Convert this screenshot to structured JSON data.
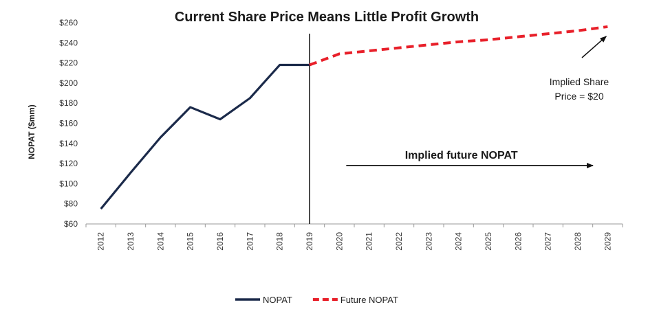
{
  "chart_data": {
    "type": "line",
    "title": "Current Share Price Means Little Profit Growth",
    "ylabel": "NOPAT ($mm)",
    "xlabel": "",
    "ylim": [
      60,
      260
    ],
    "yticks": [
      "$60",
      "$80",
      "$100",
      "$120",
      "$140",
      "$160",
      "$180",
      "$200",
      "$220",
      "$240",
      "$260"
    ],
    "x": [
      "2012",
      "2013",
      "2014",
      "2015",
      "2016",
      "2017",
      "2018",
      "2019",
      "2020",
      "2021",
      "2022",
      "2023",
      "2024",
      "2025",
      "2026",
      "2027",
      "2028",
      "2029"
    ],
    "series": [
      {
        "name": "NOPAT",
        "color": "#1b2a4a",
        "style": "solid",
        "points": [
          {
            "x": "2012",
            "y": 75
          },
          {
            "x": "2013",
            "y": 111
          },
          {
            "x": "2014",
            "y": 146
          },
          {
            "x": "2015",
            "y": 176
          },
          {
            "x": "2016",
            "y": 164
          },
          {
            "x": "2017",
            "y": 185
          },
          {
            "x": "2018",
            "y": 218
          },
          {
            "x": "2019",
            "y": 218
          }
        ]
      },
      {
        "name": "Future NOPAT",
        "color": "#e8202a",
        "style": "dashed",
        "points": [
          {
            "x": "2019",
            "y": 218
          },
          {
            "x": "2020",
            "y": 229
          },
          {
            "x": "2021",
            "y": 232
          },
          {
            "x": "2022",
            "y": 235
          },
          {
            "x": "2023",
            "y": 238
          },
          {
            "x": "2024",
            "y": 241
          },
          {
            "x": "2025",
            "y": 243
          },
          {
            "x": "2026",
            "y": 246
          },
          {
            "x": "2027",
            "y": 249
          },
          {
            "x": "2028",
            "y": 252
          },
          {
            "x": "2029",
            "y": 256
          }
        ]
      }
    ],
    "divider_at": "2019",
    "annotations": {
      "implied_future": "Implied future NOPAT",
      "implied_price_line1": "Implied Share",
      "implied_price_line2": "Price = $20"
    },
    "legend_position": "bottom-center",
    "grid": false
  }
}
